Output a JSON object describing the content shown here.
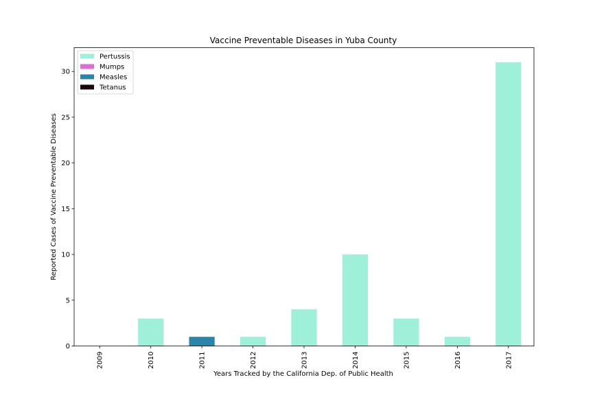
{
  "chart_data": {
    "type": "bar",
    "stacked": true,
    "title": "Vaccine Preventable Diseases in Yuba County",
    "xlabel": "Years Tracked by the California Dep. of Public Health",
    "ylabel": "Reported Cases of Vaccine Preventable Diseases",
    "categories": [
      "2009",
      "2010",
      "2011",
      "2012",
      "2013",
      "2014",
      "2015",
      "2016",
      "2017"
    ],
    "ylim": [
      0,
      32.6
    ],
    "yticks": [
      0,
      5,
      10,
      15,
      20,
      25,
      30
    ],
    "grid": false,
    "legend_position": "top-left",
    "series": [
      {
        "name": "Pertussis",
        "color": "#9ff0d9",
        "values": [
          0,
          3,
          0,
          1,
          4,
          10,
          3,
          1,
          31
        ]
      },
      {
        "name": "Mumps",
        "color": "#da6fd1",
        "values": [
          0,
          0,
          0,
          0,
          0,
          0,
          0,
          0,
          0
        ]
      },
      {
        "name": "Measles",
        "color": "#2a86a8",
        "values": [
          0,
          0,
          1,
          0,
          0,
          0,
          0,
          0,
          0
        ]
      },
      {
        "name": "Tetanus",
        "color": "#1a0a0e",
        "values": [
          0,
          0,
          0,
          0,
          0,
          0,
          0,
          0,
          0
        ]
      }
    ]
  }
}
